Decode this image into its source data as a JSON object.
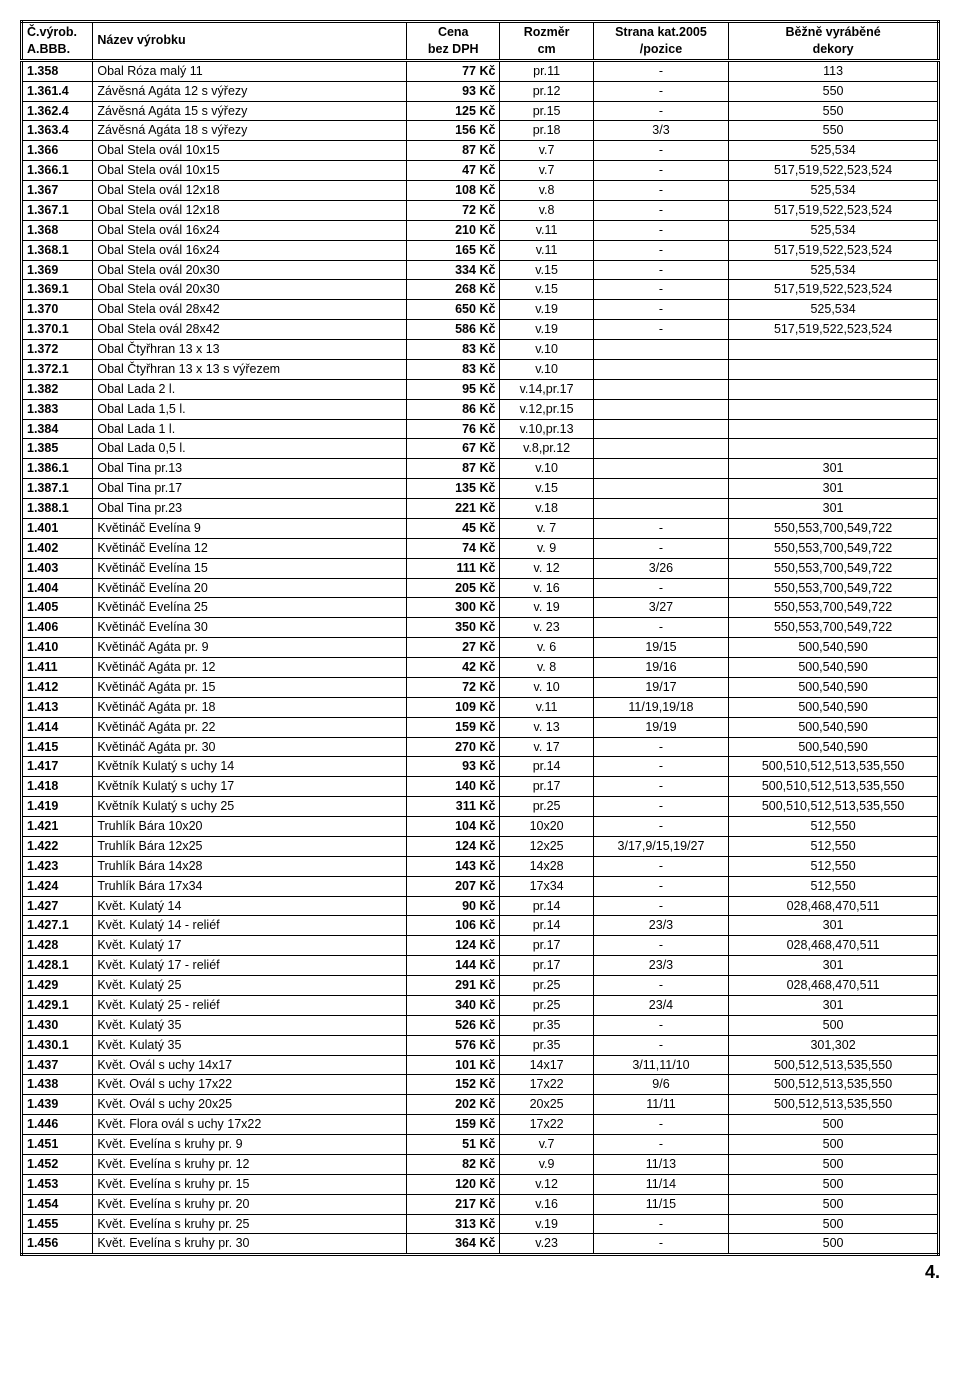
{
  "headers": {
    "code1": "Č.výrob.",
    "code2": "A.BBB.",
    "name": "Název výrobku",
    "price1": "Cena",
    "price2": "bez DPH",
    "size1": "Rozměr",
    "size2": "cm",
    "page1": "Strana kat.2005",
    "page2": "/pozice",
    "decor1": "Běžně vyráběné",
    "decor2": "dekory"
  },
  "rows": [
    {
      "code": "1.358",
      "name": "Obal Róza malý 11",
      "price": "77 Kč",
      "size": "pr.11",
      "page": "-",
      "decor": "113"
    },
    {
      "code": "1.361.4",
      "name": "Závěsná Agáta 12 s výřezy",
      "price": "93 Kč",
      "size": "pr.12",
      "page": "-",
      "decor": "550"
    },
    {
      "code": "1.362.4",
      "name": "Závěsná Agáta 15 s výřezy",
      "price": "125 Kč",
      "size": "pr.15",
      "page": "-",
      "decor": "550"
    },
    {
      "code": "1.363.4",
      "name": "Závěsná Agáta 18 s výřezy",
      "price": "156 Kč",
      "size": "pr.18",
      "page": "3/3",
      "decor": "550"
    },
    {
      "code": "1.366",
      "name": "Obal Stela ovál 10x15",
      "price": "87 Kč",
      "size": "v.7",
      "page": "-",
      "decor": "525,534"
    },
    {
      "code": "1.366.1",
      "name": "Obal Stela ovál 10x15",
      "price": "47 Kč",
      "size": "v.7",
      "page": "-",
      "decor": "517,519,522,523,524"
    },
    {
      "code": "1.367",
      "name": "Obal Stela ovál 12x18",
      "price": "108 Kč",
      "size": "v.8",
      "page": "-",
      "decor": "525,534"
    },
    {
      "code": "1.367.1",
      "name": "Obal Stela ovál 12x18",
      "price": "72 Kč",
      "size": "v.8",
      "page": "-",
      "decor": "517,519,522,523,524"
    },
    {
      "code": "1.368",
      "name": "Obal Stela ovál 16x24",
      "price": "210 Kč",
      "size": "v.11",
      "page": "-",
      "decor": "525,534"
    },
    {
      "code": "1.368.1",
      "name": "Obal Stela ovál 16x24",
      "price": "165 Kč",
      "size": "v.11",
      "page": "-",
      "decor": "517,519,522,523,524"
    },
    {
      "code": "1.369",
      "name": "Obal Stela ovál 20x30",
      "price": "334 Kč",
      "size": "v.15",
      "page": "-",
      "decor": "525,534"
    },
    {
      "code": "1.369.1",
      "name": "Obal Stela ovál 20x30",
      "price": "268 Kč",
      "size": "v.15",
      "page": "-",
      "decor": "517,519,522,523,524"
    },
    {
      "code": "1.370",
      "name": "Obal Stela ovál 28x42",
      "price": "650 Kč",
      "size": "v.19",
      "page": "-",
      "decor": "525,534"
    },
    {
      "code": "1.370.1",
      "name": "Obal Stela ovál 28x42",
      "price": "586 Kč",
      "size": "v.19",
      "page": "-",
      "decor": "517,519,522,523,524"
    },
    {
      "code": "1.372",
      "name": "Obal Čtyřhran 13 x 13",
      "price": "83 Kč",
      "size": "v.10",
      "page": "",
      "decor": ""
    },
    {
      "code": "1.372.1",
      "name": "Obal Čtyřhran 13 x 13 s výřezem",
      "price": "83 Kč",
      "size": "v.10",
      "page": "",
      "decor": ""
    },
    {
      "code": "1.382",
      "name": "Obal  Lada  2 l.",
      "price": "95 Kč",
      "size": "v.14,pr.17",
      "page": "",
      "decor": ""
    },
    {
      "code": "1.383",
      "name": "Obal  Lada  1,5 l.",
      "price": "86 Kč",
      "size": "v.12,pr.15",
      "page": "",
      "decor": ""
    },
    {
      "code": "1.384",
      "name": "Obal  Lada  1 l.",
      "price": "76 Kč",
      "size": "v.10,pr.13",
      "page": "",
      "decor": ""
    },
    {
      "code": "1.385",
      "name": "Obal  Lada  0,5 l.",
      "price": "67 Kč",
      "size": "v.8,pr.12",
      "page": "",
      "decor": ""
    },
    {
      "code": "1.386.1",
      "name": "Obal Tina pr.13",
      "price": "87 Kč",
      "size": "v.10",
      "page": "",
      "decor": "301"
    },
    {
      "code": "1.387.1",
      "name": "Obal Tina pr.17",
      "price": "135 Kč",
      "size": "v.15",
      "page": "",
      "decor": "301"
    },
    {
      "code": "1.388.1",
      "name": "Obal Tina pr.23",
      "price": "221 Kč",
      "size": "v.18",
      "page": "",
      "decor": "301"
    },
    {
      "code": "1.401",
      "name": "Květináč Evelína 9",
      "price": "45 Kč",
      "size": "v. 7",
      "page": "-",
      "decor": "550,553,700,549,722"
    },
    {
      "code": "1.402",
      "name": "Květináč Evelína 12",
      "price": "74 Kč",
      "size": "v. 9",
      "page": "-",
      "decor": "550,553,700,549,722"
    },
    {
      "code": "1.403",
      "name": "Květináč Evelína 15",
      "price": "111 Kč",
      "size": "v. 12",
      "page": "3/26",
      "decor": "550,553,700,549,722"
    },
    {
      "code": "1.404",
      "name": "Květináč Evelína 20",
      "price": "205 Kč",
      "size": "v. 16",
      "page": "-",
      "decor": "550,553,700,549,722"
    },
    {
      "code": "1.405",
      "name": "Květináč Evelína  25",
      "price": "300 Kč",
      "size": "v. 19",
      "page": "3/27",
      "decor": "550,553,700,549,722"
    },
    {
      "code": "1.406",
      "name": "Květináč Evelína  30",
      "price": "350 Kč",
      "size": "v. 23",
      "page": "-",
      "decor": "550,553,700,549,722"
    },
    {
      "code": "1.410",
      "name": "Květináč Agáta pr. 9",
      "price": "27 Kč",
      "size": "v. 6",
      "page": "19/15",
      "decor": "500,540,590"
    },
    {
      "code": "1.411",
      "name": "Květináč Agáta pr. 12",
      "price": "42 Kč",
      "size": "v. 8",
      "page": "19/16",
      "decor": "500,540,590"
    },
    {
      "code": "1.412",
      "name": "Květináč Agáta pr. 15",
      "price": "72 Kč",
      "size": "v. 10",
      "page": "19/17",
      "decor": "500,540,590"
    },
    {
      "code": "1.413",
      "name": "Květináč Agáta pr. 18",
      "price": "109 Kč",
      "size": "v.11",
      "page": "11/19,19/18",
      "decor": "500,540,590"
    },
    {
      "code": "1.414",
      "name": "Květináč Agáta pr. 22",
      "price": "159 Kč",
      "size": "v. 13",
      "page": "19/19",
      "decor": "500,540,590"
    },
    {
      "code": "1.415",
      "name": "Květináč Agáta pr. 30",
      "price": "270 Kč",
      "size": "v. 17",
      "page": "-",
      "decor": "500,540,590"
    },
    {
      "code": "1.417",
      "name": "Květník Kulatý s uchy 14",
      "price": "93 Kč",
      "size": "pr.14",
      "page": "-",
      "decor": "500,510,512,513,535,550"
    },
    {
      "code": "1.418",
      "name": "Květník Kulatý s uchy 17",
      "price": "140 Kč",
      "size": "pr.17",
      "page": "-",
      "decor": "500,510,512,513,535,550"
    },
    {
      "code": "1.419",
      "name": "Květník Kulatý s uchy 25",
      "price": "311 Kč",
      "size": "pr.25",
      "page": "-",
      "decor": "500,510,512,513,535,550"
    },
    {
      "code": "1.421",
      "name": "Truhlík Bára 10x20",
      "price": "104 Kč",
      "size": "10x20",
      "page": "-",
      "decor": "512,550"
    },
    {
      "code": "1.422",
      "name": "Truhlík Bára 12x25",
      "price": "124 Kč",
      "size": "12x25",
      "page": "3/17,9/15,19/27",
      "decor": "512,550"
    },
    {
      "code": "1.423",
      "name": "Truhlík Bára 14x28",
      "price": "143 Kč",
      "size": "14x28",
      "page": "-",
      "decor": "512,550"
    },
    {
      "code": "1.424",
      "name": "Truhlík Bára 17x34",
      "price": "207 Kč",
      "size": "17x34",
      "page": "-",
      "decor": "512,550"
    },
    {
      "code": "1.427",
      "name": "Květ. Kulatý 14",
      "price": "90 Kč",
      "size": "pr.14",
      "page": "-",
      "decor": "028,468,470,511"
    },
    {
      "code": "1.427.1",
      "name": "Květ. Kulatý 14 - reliéf",
      "price": "106 Kč",
      "size": "pr.14",
      "page": "23/3",
      "decor": "301"
    },
    {
      "code": "1.428",
      "name": "Květ. Kulatý 17",
      "price": "124 Kč",
      "size": "pr.17",
      "page": "-",
      "decor": "028,468,470,511"
    },
    {
      "code": "1.428.1",
      "name": "Květ. Kulatý 17 - reliéf",
      "price": "144 Kč",
      "size": "pr.17",
      "page": "23/3",
      "decor": "301"
    },
    {
      "code": "1.429",
      "name": "Květ. Kulatý 25",
      "price": "291 Kč",
      "size": "pr.25",
      "page": "-",
      "decor": "028,468,470,511"
    },
    {
      "code": "1.429.1",
      "name": "Květ. Kulatý 25 - reliéf",
      "price": "340 Kč",
      "size": "pr.25",
      "page": "23/4",
      "decor": "301"
    },
    {
      "code": "1.430",
      "name": "Květ. Kulatý 35",
      "price": "526 Kč",
      "size": "pr.35",
      "page": "-",
      "decor": "500"
    },
    {
      "code": "1.430.1",
      "name": "Květ. Kulatý 35",
      "price": "576 Kč",
      "size": "pr.35",
      "page": "-",
      "decor": "301,302"
    },
    {
      "code": "1.437",
      "name": "Květ. Ovál s uchy 14x17",
      "price": "101 Kč",
      "size": "14x17",
      "page": "3/11,11/10",
      "decor": "500,512,513,535,550"
    },
    {
      "code": "1.438",
      "name": "Květ. Ovál s uchy 17x22",
      "price": "152 Kč",
      "size": "17x22",
      "page": "9/6",
      "decor": "500,512,513,535,550"
    },
    {
      "code": "1.439",
      "name": "Květ. Ovál s uchy 20x25",
      "price": "202 Kč",
      "size": "20x25",
      "page": "11/11",
      "decor": "500,512,513,535,550"
    },
    {
      "code": "1.446",
      "name": "Květ. Flora ovál s uchy 17x22",
      "price": "159 Kč",
      "size": "17x22",
      "page": "-",
      "decor": "500"
    },
    {
      "code": "1.451",
      "name": "Květ. Evelína s kruhy pr. 9",
      "price": "51 Kč",
      "size": "v.7",
      "page": "-",
      "decor": "500"
    },
    {
      "code": "1.452",
      "name": "Květ. Evelína s kruhy pr. 12",
      "price": "82 Kč",
      "size": "v.9",
      "page": "11/13",
      "decor": "500"
    },
    {
      "code": "1.453",
      "name": "Květ. Evelína s kruhy pr. 15",
      "price": "120 Kč",
      "size": "v.12",
      "page": "11/14",
      "decor": "500"
    },
    {
      "code": "1.454",
      "name": "Květ. Evelína s kruhy pr. 20",
      "price": "217 Kč",
      "size": "v.16",
      "page": "11/15",
      "decor": "500"
    },
    {
      "code": "1.455",
      "name": "Květ. Evelína s kruhy pr. 25",
      "price": "313 Kč",
      "size": "v.19",
      "page": "-",
      "decor": "500"
    },
    {
      "code": "1.456",
      "name": "Květ. Evelína s kruhy pr. 30",
      "price": "364 Kč",
      "size": "v.23",
      "page": "-",
      "decor": "500"
    }
  ],
  "footer": "4."
}
